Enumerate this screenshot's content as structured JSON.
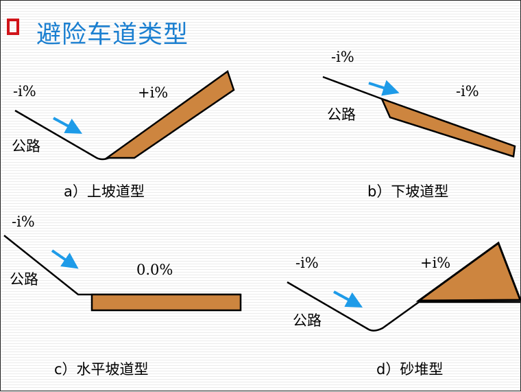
{
  "title": "避险车道类型",
  "colors": {
    "title": "#1b7fd0",
    "bullet": "#d0141a",
    "fill": "#cd853f",
    "arrow": "#1e9be8"
  },
  "panels": {
    "a": {
      "caption": "a）上坡道型",
      "road": "公路",
      "grade_in": "-i%",
      "grade_out": "+i%"
    },
    "b": {
      "caption": "b）下坡道型",
      "road": "公路",
      "grade_in": "-i%",
      "grade_out": "-i%"
    },
    "c": {
      "caption": "c）水平坡道型",
      "road": "公路",
      "grade_in": "-i%",
      "grade_out": "0.0%"
    },
    "d": {
      "caption": "d）砂堆型",
      "road": "公路",
      "grade_in": "-i%",
      "grade_out": "+i%"
    }
  }
}
